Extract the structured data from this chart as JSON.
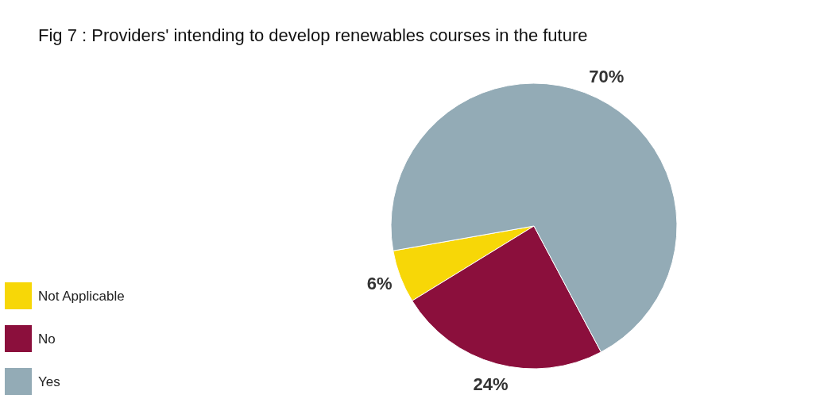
{
  "chart_data": {
    "type": "pie",
    "title": "Fig 7 : Providers' intending to develop renewables courses in the future",
    "categories": [
      "Not Applicable",
      "No",
      "Yes"
    ],
    "values": [
      6,
      24,
      70
    ],
    "colors": [
      "#f7d707",
      "#8b0f3c",
      "#93abb6"
    ],
    "value_labels": [
      "6%",
      "24%",
      "70%"
    ],
    "legend": "bottom left"
  }
}
